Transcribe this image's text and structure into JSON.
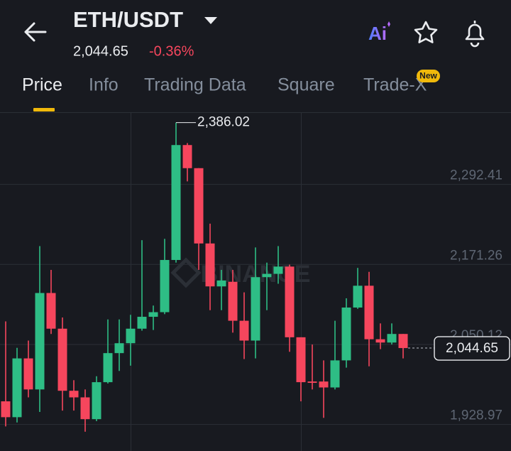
{
  "header": {
    "title": "ETH/USDT",
    "price": "2,044.65",
    "change": "-0.36%",
    "ai_label": "Ai"
  },
  "tabs": [
    "Price",
    "Info",
    "Trading Data",
    "Square",
    "Trade-X"
  ],
  "badge": "New",
  "chart_data": {
    "type": "candlestick",
    "watermark": "BINANCE",
    "up_color": "#2ebd85",
    "down_color": "#f6465d",
    "ylim": [
      1888.8,
      2401.7
    ],
    "yticks": [
      {
        "value": 1928.97,
        "label": "1,928.97"
      },
      {
        "value": 2050.12,
        "label": "2,050.12"
      },
      {
        "value": 2171.26,
        "label": "2,171.26"
      },
      {
        "value": 2292.41,
        "label": "2,292.41"
      }
    ],
    "grid": true,
    "max_marker": {
      "value": 2386.02,
      "label": "2,386.02"
    },
    "last_price": {
      "value": 2044.65,
      "label": "2,044.65"
    },
    "open": [
      1964,
      1940,
      2029,
      1982,
      2128,
      2074,
      1980,
      1970,
      1937,
      1993,
      2037,
      2052,
      2074,
      2092,
      2099,
      2178,
      2352,
      2317,
      2203,
      2138,
      2145,
      2086,
      2056,
      2152,
      2157,
      2168,
      2061,
      1994,
      1994,
      1985,
      2026,
      2106,
      2139,
      2058,
      2053,
      2066
    ],
    "high": [
      2085,
      2045,
      2056,
      2199,
      2163,
      2091,
      1996,
      1982,
      2002,
      2088,
      2088,
      2095,
      2208,
      2109,
      2210,
      2386.02,
      2355,
      2317,
      2233,
      2163,
      2163,
      2129,
      2197,
      2174,
      2199,
      2171,
      2061,
      2050,
      2026,
      2086,
      2120,
      2166,
      2160,
      2082,
      2082,
      2066
    ],
    "low": [
      1926,
      1932,
      1970,
      1948,
      2066,
      1950,
      1950,
      1918,
      1934,
      1991,
      2010,
      2018,
      2071,
      2072,
      2096,
      2174,
      2297,
      2163,
      2102,
      2102,
      2068,
      2028,
      2029,
      2102,
      2142,
      2039,
      1964,
      1982,
      1939,
      1982,
      2015,
      2104,
      2017,
      2043,
      2050,
      2029
    ],
    "close": [
      1940,
      2029,
      1982,
      2128,
      2074,
      1980,
      1970,
      1937,
      1993,
      2037,
      2052,
      2074,
      2092,
      2099,
      2178,
      2352,
      2317,
      2203,
      2138,
      2147,
      2086,
      2056,
      2152,
      2157,
      2168,
      2061,
      1993,
      1992,
      1985,
      2026,
      2106,
      2139,
      2058,
      2053,
      2066,
      2044.65
    ]
  }
}
